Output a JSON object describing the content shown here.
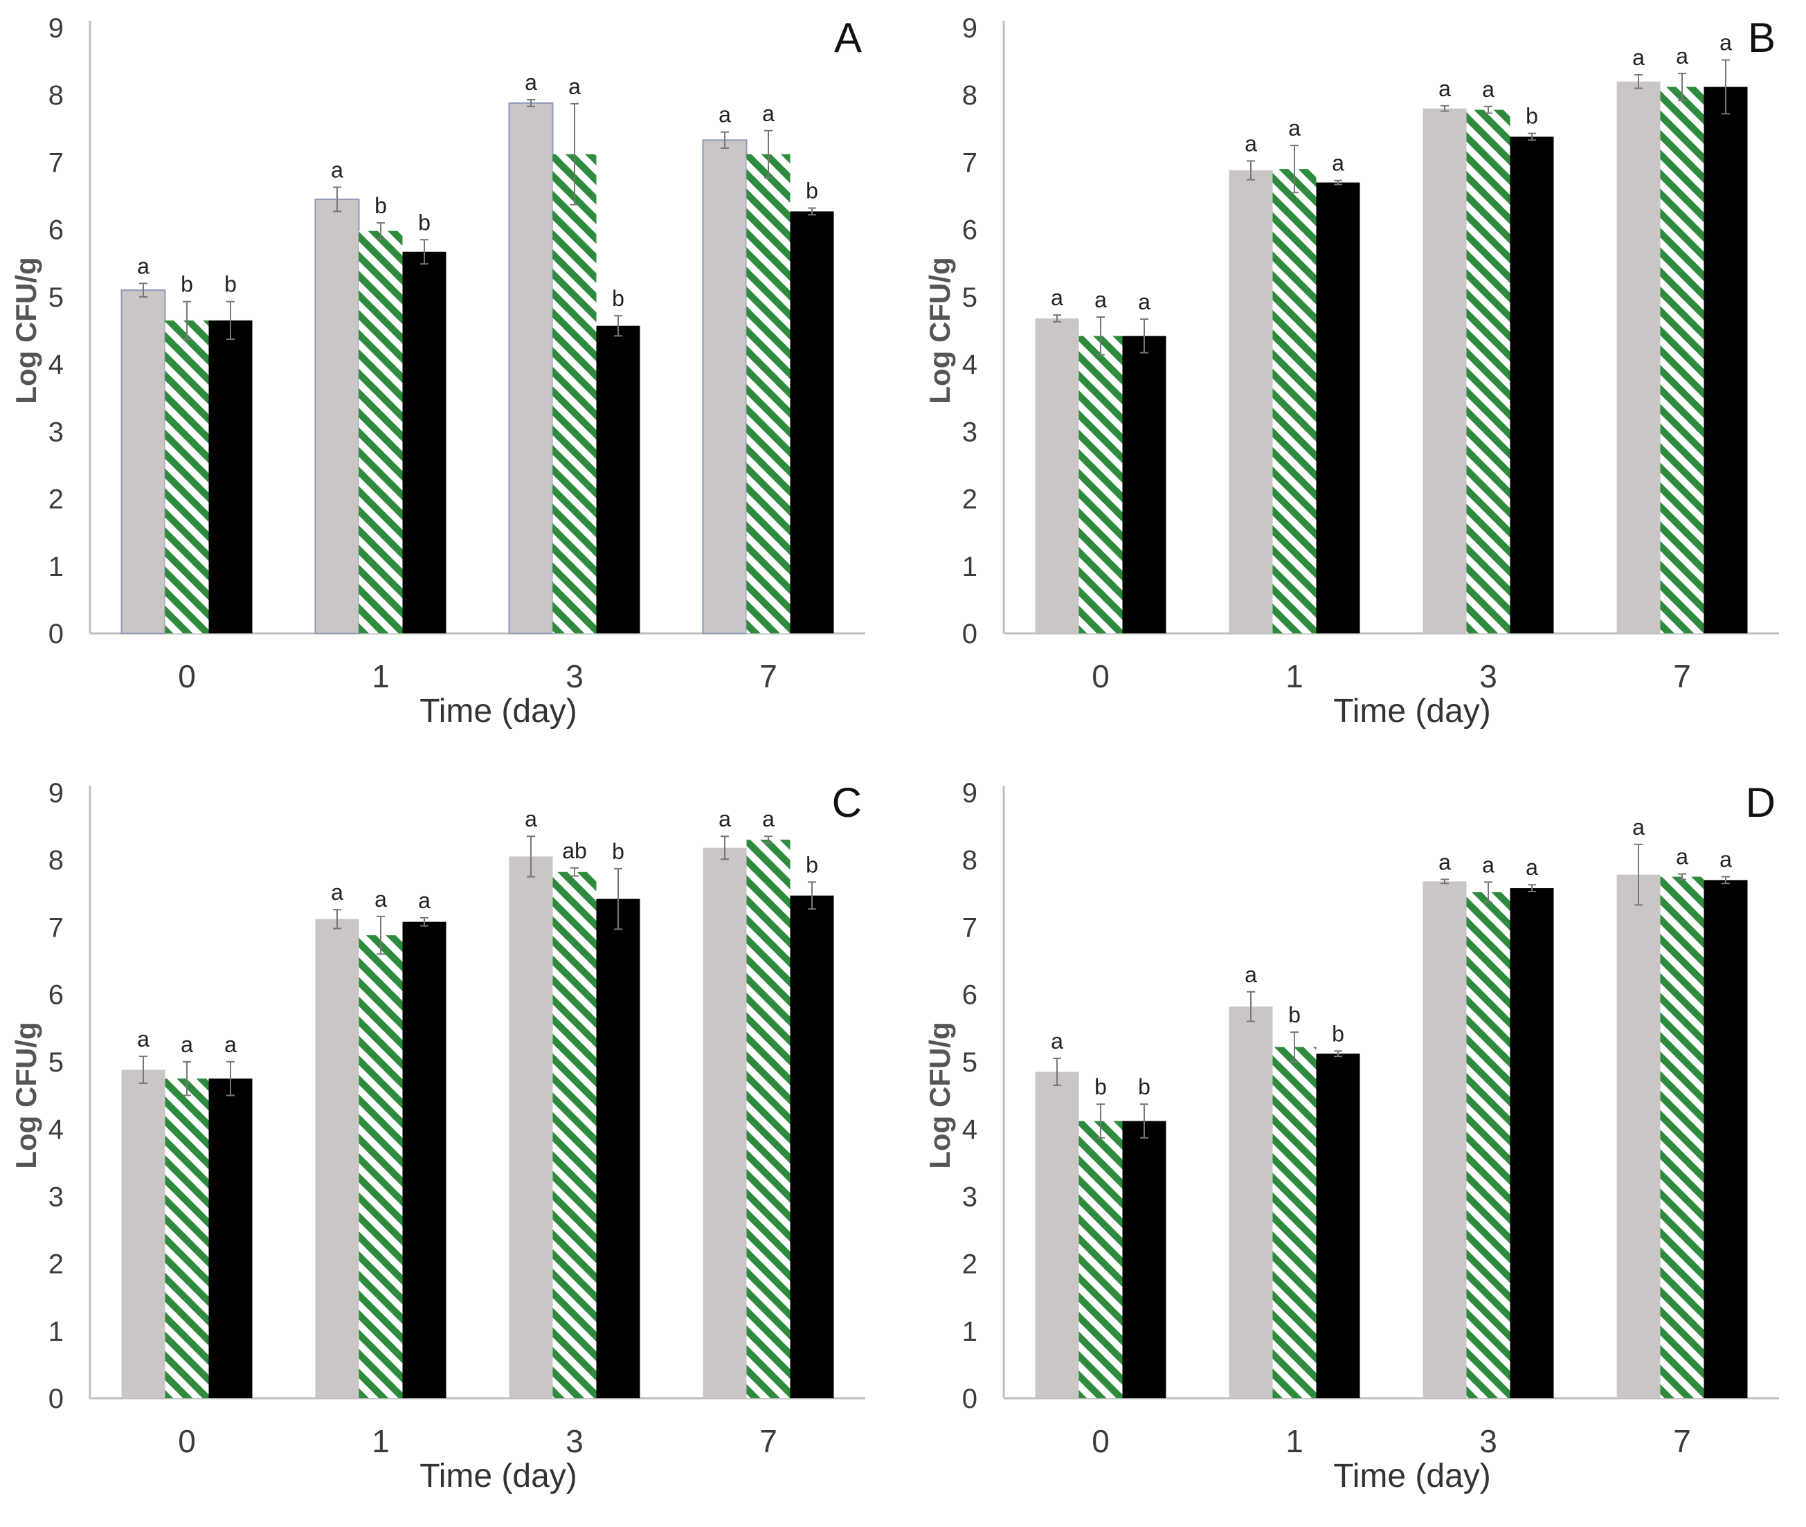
{
  "colors": {
    "series1": "#cac6c6",
    "series1_edge": "#8f98b8",
    "series2_stripe": "#2e8b3e",
    "series2_bg": "#ffffff",
    "series3": "#000000",
    "axis": "#bfbfbf",
    "error_bar": "#777777"
  },
  "chart_data": [
    {
      "panel": "A",
      "type": "bar",
      "xlabel": "Time (day)",
      "ylabel": "Log CFU/g",
      "ylim": [
        0,
        9
      ],
      "yticks": [
        "0",
        "1",
        "2",
        "3",
        "4",
        "5",
        "6",
        "7",
        "8",
        "9"
      ],
      "categories": [
        "0",
        "1",
        "3",
        "7"
      ],
      "series": [
        {
          "values": [
            5.1,
            6.45,
            7.88,
            7.33
          ],
          "errors": [
            0.1,
            0.18,
            0.05,
            0.12
          ],
          "labels": [
            "a",
            "a",
            "a",
            "a"
          ]
        },
        {
          "values": [
            4.65,
            5.98,
            7.12,
            7.12
          ],
          "errors": [
            0.28,
            0.12,
            0.75,
            0.35
          ],
          "labels": [
            "b",
            "b",
            "a",
            "a"
          ]
        },
        {
          "values": [
            4.65,
            5.67,
            4.57,
            6.27
          ],
          "errors": [
            0.28,
            0.18,
            0.15,
            0.05
          ],
          "labels": [
            "b",
            "b",
            "b",
            "b"
          ]
        }
      ]
    },
    {
      "panel": "B",
      "type": "bar",
      "xlabel": "Time (day)",
      "ylabel": "Log CFU/g",
      "ylim": [
        0,
        9
      ],
      "yticks": [
        "0",
        "1",
        "2",
        "3",
        "4",
        "5",
        "6",
        "7",
        "8",
        "9"
      ],
      "categories": [
        "0",
        "1",
        "3",
        "7"
      ],
      "series": [
        {
          "values": [
            4.68,
            6.88,
            7.8,
            8.2
          ],
          "errors": [
            0.05,
            0.14,
            0.04,
            0.1
          ],
          "labels": [
            "a",
            "a",
            "a",
            "a"
          ]
        },
        {
          "values": [
            4.42,
            6.9,
            7.78,
            8.12
          ],
          "errors": [
            0.28,
            0.35,
            0.05,
            0.2
          ],
          "labels": [
            "a",
            "a",
            "a",
            "a"
          ]
        },
        {
          "values": [
            4.42,
            6.7,
            7.38,
            8.12
          ],
          "errors": [
            0.25,
            0.03,
            0.05,
            0.4
          ],
          "labels": [
            "a",
            "a",
            "b",
            "a"
          ]
        }
      ]
    },
    {
      "panel": "C",
      "type": "bar",
      "xlabel": "Time (day)",
      "ylabel": "Log CFU/g",
      "ylim": [
        0,
        9
      ],
      "yticks": [
        "0",
        "1",
        "2",
        "3",
        "4",
        "5",
        "6",
        "7",
        "8",
        "9"
      ],
      "categories": [
        "0",
        "1",
        "3",
        "7"
      ],
      "series": [
        {
          "values": [
            4.88,
            7.12,
            8.05,
            8.18
          ],
          "errors": [
            0.2,
            0.14,
            0.3,
            0.17
          ],
          "labels": [
            "a",
            "a",
            "a",
            "a"
          ]
        },
        {
          "values": [
            4.75,
            6.88,
            7.82,
            8.3
          ],
          "errors": [
            0.25,
            0.28,
            0.06,
            0.05
          ],
          "labels": [
            "a",
            "a",
            "ab",
            "a"
          ]
        },
        {
          "values": [
            4.75,
            7.08,
            7.42,
            7.47
          ],
          "errors": [
            0.25,
            0.06,
            0.45,
            0.2
          ],
          "labels": [
            "a",
            "a",
            "b",
            "b"
          ]
        }
      ]
    },
    {
      "panel": "D",
      "type": "bar",
      "xlabel": "Time (day)",
      "ylabel": "Log CFU/g",
      "ylim": [
        0,
        9
      ],
      "yticks": [
        "0",
        "1",
        "2",
        "3",
        "4",
        "5",
        "6",
        "7",
        "8",
        "9"
      ],
      "categories": [
        "0",
        "1",
        "3",
        "7"
      ],
      "series": [
        {
          "values": [
            4.85,
            5.82,
            7.68,
            7.78
          ],
          "errors": [
            0.2,
            0.22,
            0.03,
            0.45
          ],
          "labels": [
            "a",
            "a",
            "a",
            "a"
          ]
        },
        {
          "values": [
            4.12,
            5.22,
            7.52,
            7.75
          ],
          "errors": [
            0.25,
            0.22,
            0.15,
            0.04
          ],
          "labels": [
            "b",
            "b",
            "a",
            "a"
          ]
        },
        {
          "values": [
            4.12,
            5.12,
            7.58,
            7.7
          ],
          "errors": [
            0.25,
            0.04,
            0.05,
            0.05
          ],
          "labels": [
            "b",
            "b",
            "a",
            "a"
          ]
        }
      ]
    }
  ]
}
